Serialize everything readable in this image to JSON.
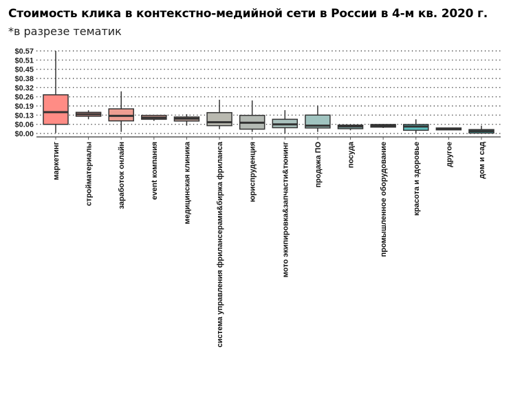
{
  "header": {
    "title": "Стоимость клика в контекстно-медийной сети в России в 4-м кв. 2020 г.",
    "subtitle": "*в разрезе тематик"
  },
  "chart_data": {
    "type": "boxplot",
    "title": "Стоимость клика в контекстно-медийной сети в России в 4-м кв. 2020 г.",
    "subtitle": "*в разрезе тематик",
    "xlabel": "",
    "ylabel": "",
    "ylim": [
      0,
      0.57
    ],
    "yticks": [
      "$0.00",
      "$0.06",
      "$0.13",
      "$0.19",
      "$0.26",
      "$0.32",
      "$0.38",
      "$0.45",
      "$0.51",
      "$0.57"
    ],
    "grid": "horizontal dotted",
    "legend": "none",
    "categories": [
      "маркетинг",
      "стройматериалы",
      "заработок онлайн",
      "event компания",
      "медицинская клиника",
      "система управления фрилансерами&биржа фриланса",
      "юриспруденция",
      "мото экипировка&запчасти&тюнинг",
      "продажа ПО",
      "посуда",
      "промышленное оборудование",
      "красота и здоровье",
      "другое",
      "дом и сад"
    ],
    "boxes": [
      {
        "min": 0.003,
        "q1": 0.063,
        "median": 0.147,
        "q3": 0.267,
        "max": 0.57,
        "color": "#FF8C85"
      },
      {
        "min": 0.098,
        "q1": 0.119,
        "median": 0.133,
        "q3": 0.146,
        "max": 0.16,
        "color": "#E89890"
      },
      {
        "min": 0.011,
        "q1": 0.087,
        "median": 0.122,
        "q3": 0.17,
        "max": 0.291,
        "color": "#EE9E92"
      },
      {
        "min": 0.087,
        "q1": 0.098,
        "median": 0.109,
        "q3": 0.125,
        "max": 0.125,
        "color": "#D8A398"
      },
      {
        "min": 0.054,
        "q1": 0.086,
        "median": 0.103,
        "q3": 0.114,
        "max": 0.133,
        "color": "#C9A9A0"
      },
      {
        "min": 0.03,
        "q1": 0.054,
        "median": 0.078,
        "q3": 0.144,
        "max": 0.233,
        "color": "#B9B9B0"
      },
      {
        "min": 0.011,
        "q1": 0.03,
        "median": 0.074,
        "q3": 0.125,
        "max": 0.228,
        "color": "#B4BAB4"
      },
      {
        "min": 0.0,
        "q1": 0.04,
        "median": 0.063,
        "q3": 0.098,
        "max": 0.161,
        "color": "#AAC2BE"
      },
      {
        "min": 0.011,
        "q1": 0.038,
        "median": 0.054,
        "q3": 0.127,
        "max": 0.193,
        "color": "#A0C4C0"
      },
      {
        "min": 0.022,
        "q1": 0.033,
        "median": 0.048,
        "q3": 0.058,
        "max": 0.058,
        "color": "#8FC1BE"
      },
      {
        "min": 0.038,
        "q1": 0.044,
        "median": 0.054,
        "q3": 0.062,
        "max": 0.062,
        "color": "#80C0BE"
      },
      {
        "min": 0.0,
        "q1": 0.022,
        "median": 0.048,
        "q3": 0.062,
        "max": 0.098,
        "color": "#5FC0C0"
      },
      {
        "min": 0.025,
        "q1": 0.025,
        "median": 0.032,
        "q3": 0.038,
        "max": 0.038,
        "color": "#50BCBC"
      },
      {
        "min": 0.003,
        "q1": 0.003,
        "median": 0.016,
        "q3": 0.027,
        "max": 0.054,
        "color": "#40B8B8"
      }
    ]
  }
}
